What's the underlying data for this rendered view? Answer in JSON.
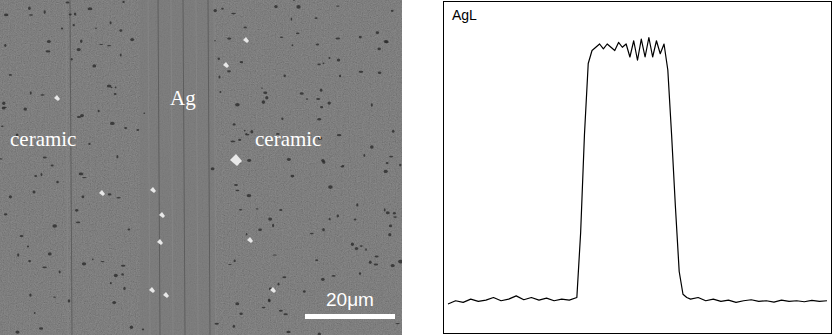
{
  "chart_data": {
    "type": "line",
    "title": "AgL",
    "x": [
      0,
      2,
      4,
      6,
      8,
      10,
      12,
      14,
      16,
      18,
      20,
      22,
      24,
      26,
      28,
      30,
      32,
      34,
      35,
      36,
      37,
      38,
      39,
      40,
      41,
      42,
      43,
      44,
      45,
      46,
      47,
      48,
      49,
      50,
      51,
      52,
      53,
      54,
      55,
      56,
      57,
      58,
      59,
      60,
      61,
      62,
      63,
      64,
      66,
      68,
      70,
      72,
      74,
      76,
      78,
      80,
      82,
      84,
      86,
      88,
      90,
      92,
      94,
      96,
      98,
      100
    ],
    "values": [
      8,
      9,
      8.5,
      9.5,
      8.8,
      9.2,
      10,
      9,
      9.5,
      10.5,
      9.3,
      10,
      9.2,
      9.8,
      9,
      9.5,
      9.2,
      10,
      30,
      60,
      82,
      86,
      87,
      88,
      86.5,
      88,
      87,
      86,
      88.5,
      87,
      88,
      84,
      89,
      83,
      89.5,
      84,
      90,
      84,
      89,
      85,
      88,
      80,
      60,
      38,
      18,
      11,
      10,
      9.5,
      10,
      9,
      9.5,
      8.8,
      9.2,
      8.5,
      9,
      9.3,
      8.8,
      9,
      8.6,
      9.2,
      8.8,
      9,
      8.7,
      9.1,
      8.8,
      9
    ],
    "color": "#000000",
    "xlim": [
      0,
      100
    ],
    "ylim": [
      0,
      100
    ],
    "tick_labels": false
  },
  "image": {
    "labels": [
      "ceramic",
      "Ag",
      "ceramic"
    ],
    "scale_bar": "20μm"
  }
}
